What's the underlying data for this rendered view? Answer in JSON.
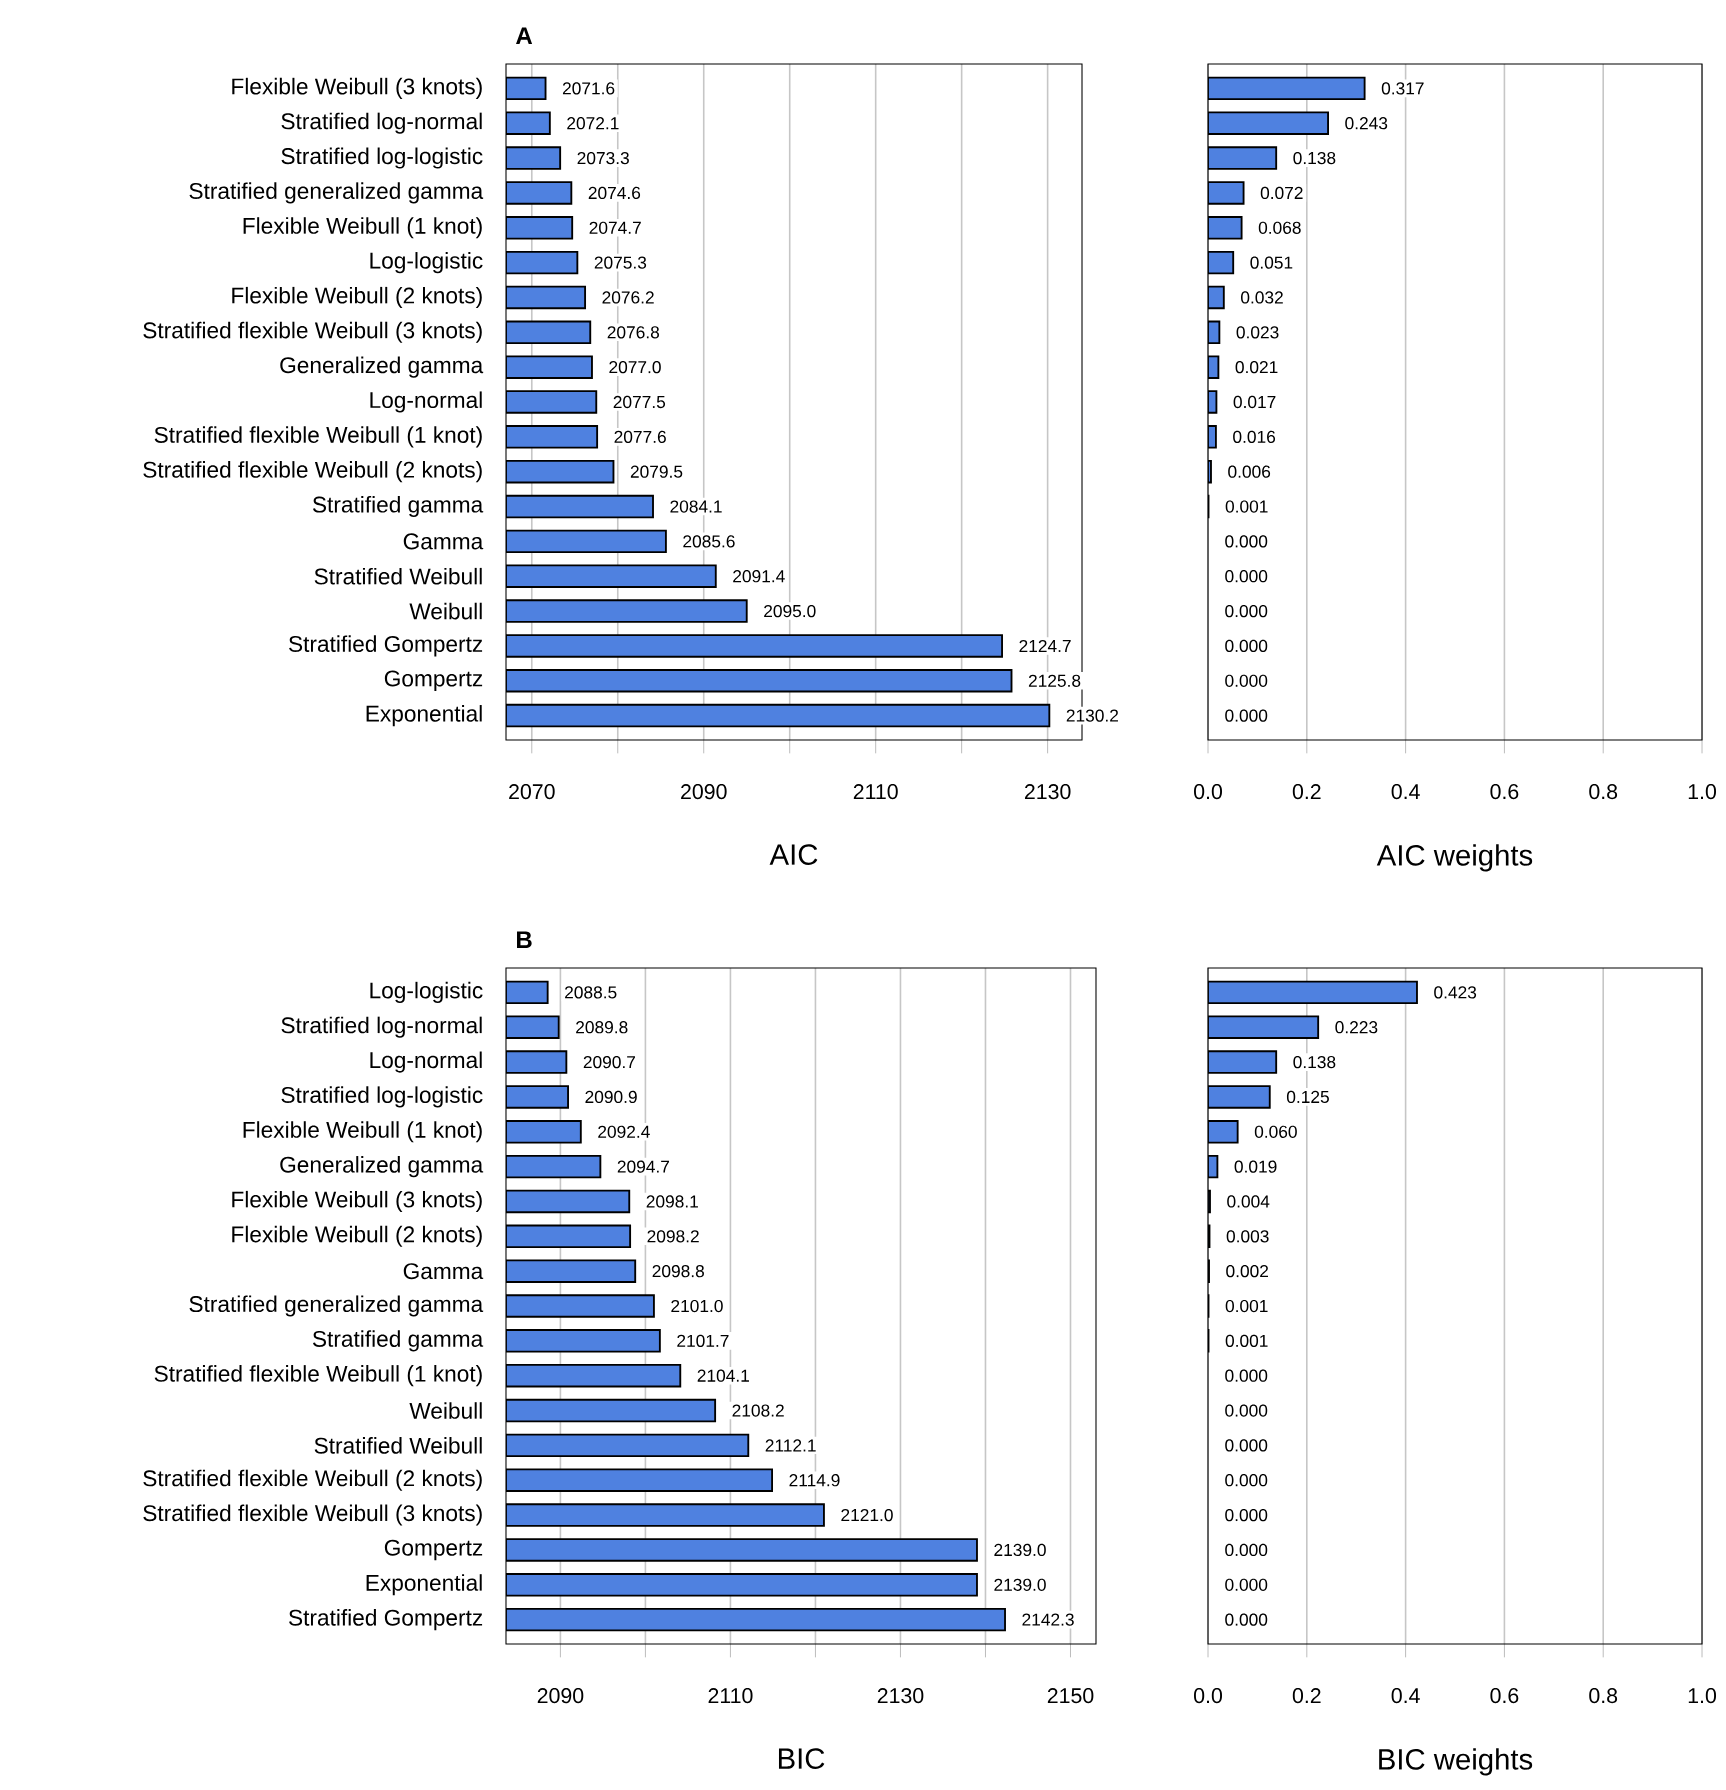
{
  "chart_data": [
    {
      "type": "bar",
      "orientation": "horizontal",
      "title": "A",
      "xlabel": "AIC",
      "color": "#4f81e0",
      "grid": "x",
      "categories": [
        "Flexible Weibull (3 knots)",
        "Stratified log-normal",
        "Stratified log-logistic",
        "Stratified generalized gamma",
        "Flexible Weibull (1 knot)",
        "Log-logistic",
        "Flexible Weibull (2 knots)",
        "Stratified flexible Weibull (3 knots)",
        "Generalized gamma",
        "Log-normal",
        "Stratified flexible Weibull (1 knot)",
        "Stratified flexible Weibull (2 knots)",
        "Stratified gamma",
        "Gamma",
        "Stratified Weibull",
        "Weibull",
        "Stratified Gompertz",
        "Gompertz",
        "Exponential"
      ],
      "values": [
        2071.6,
        2072.1,
        2073.3,
        2074.6,
        2074.7,
        2075.3,
        2076.2,
        2076.8,
        2077.0,
        2077.5,
        2077.6,
        2079.5,
        2084.1,
        2085.6,
        2091.4,
        2095.0,
        2124.7,
        2125.8,
        2130.2
      ],
      "value_labels": [
        "2071.6",
        "2072.1",
        "2073.3",
        "2074.6",
        "2074.7",
        "2075.3",
        "2076.2",
        "2076.8",
        "2077.0",
        "2077.5",
        "2077.6",
        "2079.5",
        "2084.1",
        "2085.6",
        "2091.4",
        "2095.0",
        "2124.7",
        "2125.8",
        "2130.2"
      ],
      "xlim": [
        2067,
        2134
      ],
      "xticks": [
        2070,
        {
          "value": 2080,
          "label": null
        },
        2090,
        {
          "value": 2100,
          "label": null
        },
        2110,
        {
          "value": 2120,
          "label": null
        },
        2130
      ]
    },
    {
      "type": "bar",
      "orientation": "horizontal",
      "xlabel": "AIC weights",
      "color": "#4f81e0",
      "grid": "x",
      "categories": [
        null,
        null,
        null,
        null,
        null,
        null,
        null,
        null,
        null,
        null,
        null,
        null,
        null,
        null,
        null,
        null,
        null,
        null,
        null
      ],
      "values": [
        0.317,
        0.243,
        0.138,
        0.072,
        0.068,
        0.051,
        0.032,
        0.023,
        0.021,
        0.017,
        0.016,
        0.006,
        0.001,
        0.0,
        0.0,
        0.0,
        0.0,
        0.0,
        0.0
      ],
      "value_labels": [
        "0.317",
        "0.243",
        "0.138",
        "0.072",
        "0.068",
        "0.051",
        "0.032",
        "0.023",
        "0.021",
        "0.017",
        "0.016",
        "0.006",
        "0.001",
        "0.000",
        "0.000",
        "0.000",
        "0.000",
        "0.000",
        "0.000"
      ],
      "xlim": [
        0,
        1
      ],
      "xticks": [
        {
          "value": 0,
          "label": "0.0"
        },
        0.2,
        0.4,
        0.6,
        0.8,
        {
          "value": 1,
          "label": "1.0"
        }
      ]
    },
    {
      "type": "bar",
      "orientation": "horizontal",
      "title": "B",
      "xlabel": "BIC",
      "color": "#4f81e0",
      "grid": "x",
      "categories": [
        "Log-logistic",
        "Stratified log-normal",
        "Log-normal",
        "Stratified log-logistic",
        "Flexible Weibull (1 knot)",
        "Generalized gamma",
        "Flexible Weibull (3 knots)",
        "Flexible Weibull (2 knots)",
        "Gamma",
        "Stratified generalized gamma",
        "Stratified gamma",
        "Stratified flexible Weibull (1 knot)",
        "Weibull",
        "Stratified Weibull",
        "Stratified flexible Weibull (2 knots)",
        "Stratified flexible Weibull (3 knots)",
        "Gompertz",
        "Exponential",
        "Stratified Gompertz"
      ],
      "values": [
        2088.5,
        2089.8,
        2090.7,
        2090.9,
        2092.4,
        2094.7,
        2098.1,
        2098.2,
        2098.8,
        2101.0,
        2101.7,
        2104.1,
        2108.2,
        2112.1,
        2114.9,
        2121.0,
        2139.0,
        2139.0,
        2142.3
      ],
      "value_labels": [
        "2088.5",
        "2089.8",
        "2090.7",
        "2090.9",
        "2092.4",
        "2094.7",
        "2098.1",
        "2098.2",
        "2098.8",
        "2101.0",
        "2101.7",
        "2104.1",
        "2108.2",
        "2112.1",
        "2114.9",
        "2121.0",
        "2139.0",
        "2139.0",
        "2142.3"
      ],
      "xlim": [
        2083.6,
        2153
      ],
      "xticks": [
        2090,
        {
          "value": 2100,
          "label": null
        },
        2110,
        {
          "value": 2120,
          "label": null
        },
        2130,
        {
          "value": 2140,
          "label": null
        },
        2150
      ]
    },
    {
      "type": "bar",
      "orientation": "horizontal",
      "xlabel": "BIC weights",
      "color": "#4f81e0",
      "grid": "x",
      "categories": [
        null,
        null,
        null,
        null,
        null,
        null,
        null,
        null,
        null,
        null,
        null,
        null,
        null,
        null,
        null,
        null,
        null,
        null,
        null
      ],
      "values": [
        0.423,
        0.223,
        0.138,
        0.125,
        0.06,
        0.019,
        0.004,
        0.003,
        0.002,
        0.001,
        0.001,
        0.0,
        0.0,
        0.0,
        0.0,
        0.0,
        0.0,
        0.0,
        0.0
      ],
      "value_labels": [
        "0.423",
        "0.223",
        "0.138",
        "0.125",
        "0.060",
        "0.019",
        "0.004",
        "0.003",
        "0.002",
        "0.001",
        "0.001",
        "0.000",
        "0.000",
        "0.000",
        "0.000",
        "0.000",
        "0.000",
        "0.000",
        "0.000"
      ],
      "xlim": [
        0,
        1
      ],
      "xticks": [
        {
          "value": 0,
          "label": "0.0"
        },
        0.2,
        0.4,
        0.6,
        0.8,
        {
          "value": 1,
          "label": "1.0"
        }
      ]
    }
  ]
}
